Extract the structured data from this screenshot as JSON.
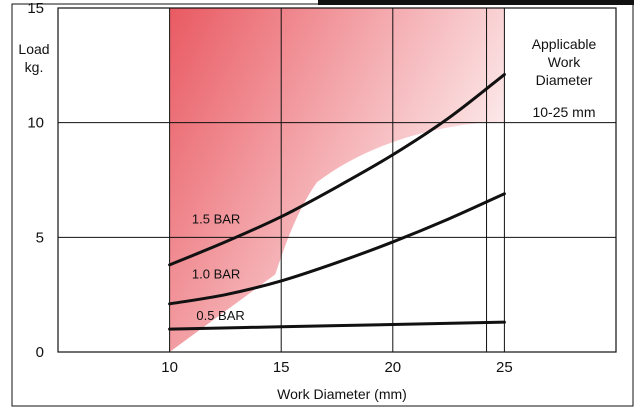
{
  "chart_data": {
    "type": "line",
    "ylabel_lines": [
      "Load",
      "kg."
    ],
    "xlabel": "Work Diameter (mm)",
    "xlim": [
      5,
      30
    ],
    "ylim": [
      0,
      15
    ],
    "x_ticks": [
      {
        "value": 10,
        "label": "10"
      },
      {
        "value": 15,
        "label": "15"
      },
      {
        "value": 20,
        "label": "20"
      },
      {
        "value": 25,
        "label": "25"
      }
    ],
    "y_ticks": [
      {
        "value": 0,
        "label": "0"
      },
      {
        "value": 5,
        "label": "5"
      },
      {
        "value": 10,
        "label": "10"
      },
      {
        "value": 15,
        "label": "15"
      }
    ],
    "grid": true,
    "applicable_range": [
      10,
      25
    ],
    "applicable_note_lines": [
      "Applicable",
      "Work",
      "Diameter"
    ],
    "applicable_range_label": "10-25 mm",
    "shade_color": "#e8515a",
    "series": [
      {
        "name": "1.5 BAR",
        "x": [
          10,
          12.5,
          15,
          17.5,
          20,
          22.5,
          25
        ],
        "values": [
          3.8,
          4.8,
          5.9,
          7.2,
          8.6,
          10.2,
          12.1
        ]
      },
      {
        "name": "1.0 BAR",
        "x": [
          10,
          12.5,
          15,
          17.5,
          20,
          22.5,
          25
        ],
        "values": [
          2.1,
          2.5,
          3.1,
          3.9,
          4.8,
          5.8,
          6.9
        ]
      },
      {
        "name": "0.5 BAR",
        "x": [
          10,
          15,
          20,
          25
        ],
        "values": [
          1.0,
          1.1,
          1.2,
          1.3
        ]
      }
    ]
  }
}
